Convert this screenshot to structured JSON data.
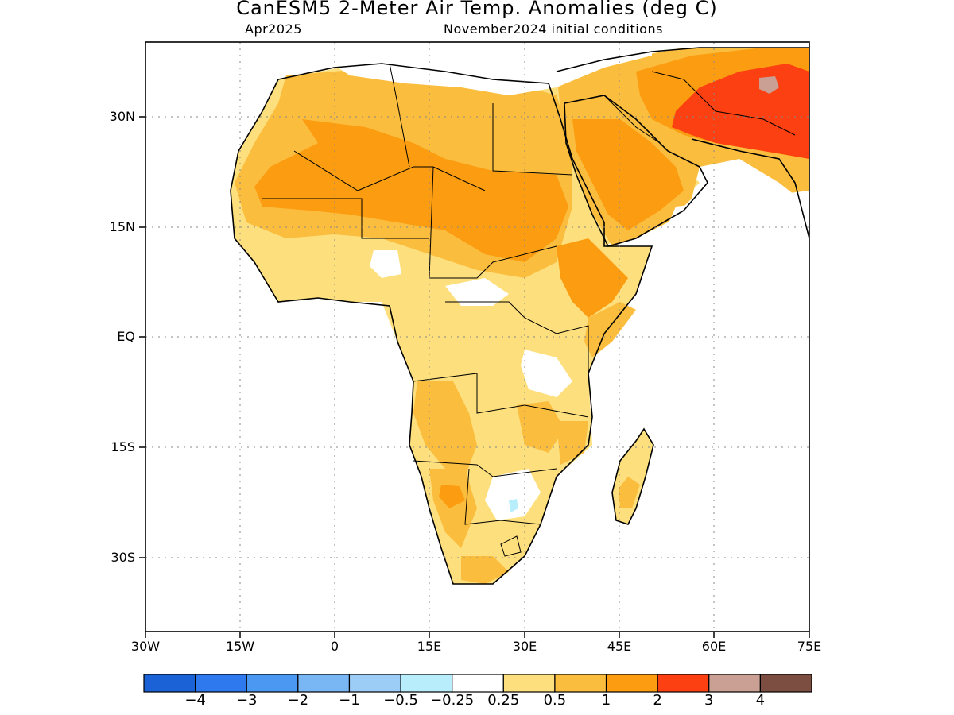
{
  "header": {
    "title": "CanESM5 2-Meter Air Temp. Anomalies (deg C)",
    "valid_month": "Apr2025",
    "init_conditions": "November2024 initial conditions"
  },
  "map": {
    "lon_range": [
      -30,
      75
    ],
    "lat_range": [
      -40,
      40
    ],
    "lat_ticks": [
      "30N",
      "15N",
      "EQ",
      "15S",
      "30S"
    ],
    "lon_ticks": [
      "30W",
      "15W",
      "0",
      "15E",
      "30E",
      "45E",
      "60E",
      "75E"
    ],
    "grid": true,
    "region": "Africa and Middle East"
  },
  "colorbar": {
    "colors": [
      "#1a62d6",
      "#2e79ee",
      "#4a98f2",
      "#78b6f4",
      "#9ccdf7",
      "#b8eefb",
      "#ffffff",
      "#fde07d",
      "#fbbd3e",
      "#fb9c11",
      "#fc4011",
      "#c9a093",
      "#7b4e41"
    ],
    "labels": [
      "−4",
      "−3",
      "−2",
      "−1",
      "−0.5",
      "−0.25",
      "0.25",
      "0.5",
      "1",
      "2",
      "3",
      "4"
    ]
  },
  "legend_colors": {
    "anom_0_25_0_5": "#fde07d",
    "anom_0_5_1": "#fbbd3e",
    "anom_1_2": "#fb9c11",
    "anom_2_3": "#fc4011",
    "anom_3_4": "#c9a093",
    "anom_neg_0_25_neg_0_5": "#b8eefb"
  }
}
